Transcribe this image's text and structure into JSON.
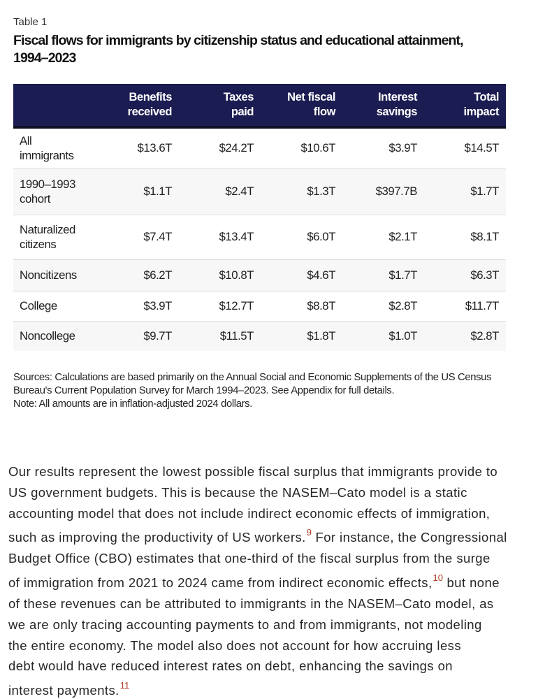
{
  "table_label": "Table 1",
  "title": {
    "line1": "Fiscal flows for immigrants by citizenship status and educational attainment,",
    "line2": "1994–2023"
  },
  "table": {
    "columns": [
      {
        "line1": "Benefits",
        "line2": "received"
      },
      {
        "line1": "Taxes",
        "line2": "paid"
      },
      {
        "line1": "Net fiscal",
        "line2": "flow"
      },
      {
        "line1": "Interest",
        "line2": "savings"
      },
      {
        "line1": "Total",
        "line2": "impact"
      }
    ],
    "rows": [
      {
        "label": "All immigrants",
        "values": [
          "$13.6T",
          "$24.2T",
          "$10.6T",
          "$3.9T",
          "$14.5T"
        ]
      },
      {
        "label": "1990–1993 cohort",
        "values": [
          "$1.1T",
          "$2.4T",
          "$1.3T",
          "$397.7B",
          "$1.7T"
        ]
      },
      {
        "label": "Naturalized citizens",
        "values": [
          "$7.4T",
          "$13.4T",
          "$6.0T",
          "$2.1T",
          "$8.1T"
        ]
      },
      {
        "label": "Noncitizens",
        "values": [
          "$6.2T",
          "$10.8T",
          "$4.6T",
          "$1.7T",
          "$6.3T"
        ]
      },
      {
        "label": "College",
        "values": [
          "$3.9T",
          "$12.7T",
          "$8.8T",
          "$2.8T",
          "$11.7T"
        ]
      },
      {
        "label": "Noncollege",
        "values": [
          "$9.7T",
          "$11.5T",
          "$1.8T",
          "$1.0T",
          "$2.8T"
        ]
      }
    ]
  },
  "notes": {
    "sources_lines": [
      "Sources: Calculations are based primarily on the Annual Social and Economic Supplements of the US Census",
      "Bureau's Current Population Survey for March 1994–2023. See Appendix for full details."
    ],
    "note_line": "Note: All amounts are in inflation-adjusted 2024 dollars."
  },
  "paragraph": {
    "lines": [
      [
        "Our results represent the lowest possible fiscal surplus that immigrants provide to"
      ],
      [
        "US government budgets. This is because the NASEM–Cato model is a static"
      ],
      [
        "accounting model that does not include indirect economic effects of immigration,"
      ],
      [
        "such as improving the productivity of US workers.",
        "^9",
        " For instance, the Congressional"
      ],
      [
        "Budget Office (CBO) estimates that one-third of the fiscal surplus from the surge"
      ],
      [
        "of immigration from 2021 to 2024 came from indirect economic effects,",
        "^10",
        " but none"
      ],
      [
        "of these revenues can be attributed to immigrants in the NASEM–Cato model, as"
      ],
      [
        "we are only tracing accounting payments to and from immigrants, not modeling"
      ],
      [
        "the entire economy. The model also does not account for how accruing less"
      ],
      [
        "debt would have reduced interest rates on debt, enhancing the savings on"
      ],
      [
        "interest payments.",
        "^11"
      ]
    ]
  },
  "colors": {
    "header_bg": "#1b1c52",
    "footnote_red": "#b43d25",
    "row_alt": "#f7f7f7"
  }
}
